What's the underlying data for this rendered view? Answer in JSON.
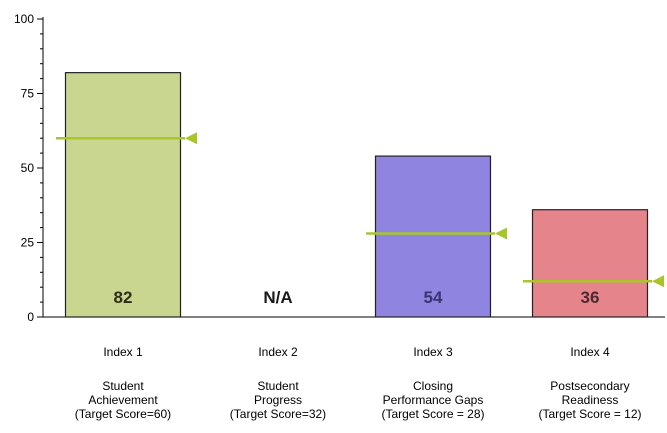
{
  "chart_data": {
    "type": "bar",
    "categories": [
      "Index 1",
      "Index 2",
      "Index 3",
      "Index 4"
    ],
    "descriptions": [
      [
        "Student",
        "Achievement",
        "(Target Score=60)"
      ],
      [
        "Student",
        "Progress",
        "(Target Score=32)"
      ],
      [
        "Closing",
        "Performance Gaps",
        "(Target Score = 28)"
      ],
      [
        "Postsecondary",
        "Readiness",
        "(Target Score = 12)"
      ]
    ],
    "values": [
      82,
      null,
      54,
      36
    ],
    "value_labels": [
      "82",
      "N/A",
      "54",
      "36"
    ],
    "targets": [
      60,
      null,
      28,
      12
    ],
    "bar_colors": [
      "#c8d690",
      null,
      "#8f85e0",
      "#e6848c"
    ],
    "target_line_color": "#a8c62a",
    "ylim": [
      0,
      100
    ],
    "yticks": [
      0,
      25,
      50,
      75,
      100
    ],
    "ytick_labels": [
      "0",
      "25",
      "50",
      "75",
      "100"
    ],
    "title": "",
    "xlabel": "",
    "ylabel": ""
  }
}
